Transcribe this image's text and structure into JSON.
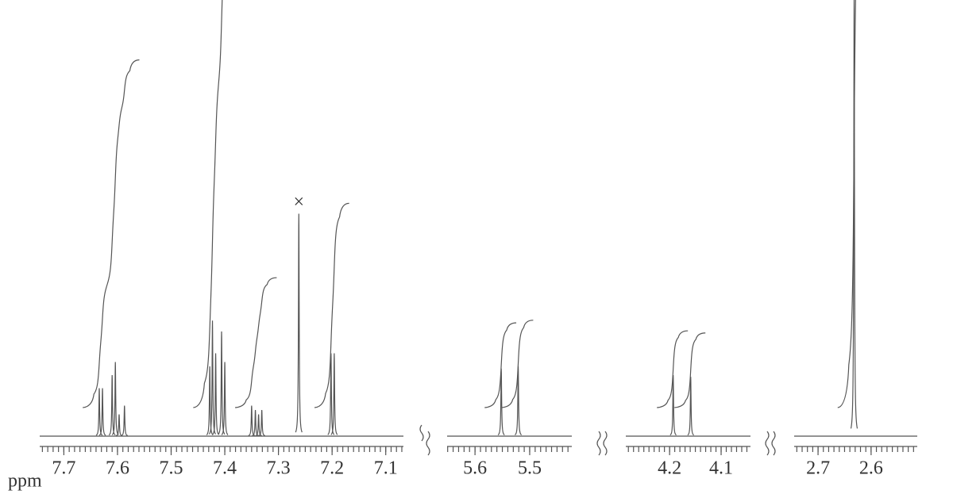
{
  "chart_data": [
    {
      "type": "nmr",
      "x_label": "ppm",
      "xlim": [
        7.745,
        7.067
      ],
      "ylim": [
        0,
        100
      ],
      "minor_ticks": 0.01,
      "xticks": [
        7.7,
        7.6,
        7.5,
        7.4,
        7.3,
        7.2,
        7.1
      ],
      "peaks": {
        "x": [
          7.634,
          7.628,
          7.61,
          7.604,
          7.597,
          7.587,
          7.428,
          7.423,
          7.417,
          7.406,
          7.4,
          7.35,
          7.343,
          7.337,
          7.331,
          7.262,
          7.202,
          7.196
        ],
        "values": [
          11,
          11,
          14,
          17,
          5,
          7,
          16,
          26.5,
          19,
          24,
          17,
          7,
          6,
          5,
          6,
          51,
          19,
          19
        ]
      },
      "annotations": [
        {
          "text": "×",
          "x": 7.262
        }
      ]
    },
    {
      "type": "nmr",
      "xlim": [
        5.651,
        5.423
      ],
      "ylim": [
        0,
        100
      ],
      "minor_ticks": 0.01,
      "xticks": [
        5.6,
        5.5
      ],
      "peaks": {
        "x": [
          5.552,
          5.521
        ],
        "values": [
          15.5,
          16
        ]
      }
    },
    {
      "type": "nmr",
      "xlim": [
        4.285,
        4.043
      ],
      "ylim": [
        0,
        100
      ],
      "minor_ticks": 0.01,
      "xticks": [
        4.2,
        4.1
      ],
      "peaks": {
        "x": [
          4.193,
          4.159
        ],
        "values": [
          14,
          13.6
        ]
      }
    },
    {
      "type": "nmr",
      "xlim": [
        2.745,
        2.513
      ],
      "ylim": [
        0,
        100
      ],
      "minor_ticks": 0.01,
      "xticks": [
        2.7,
        2.6
      ],
      "peaks": {
        "x": [
          2.632
        ],
        "values": [
          100
        ]
      }
    }
  ]
}
